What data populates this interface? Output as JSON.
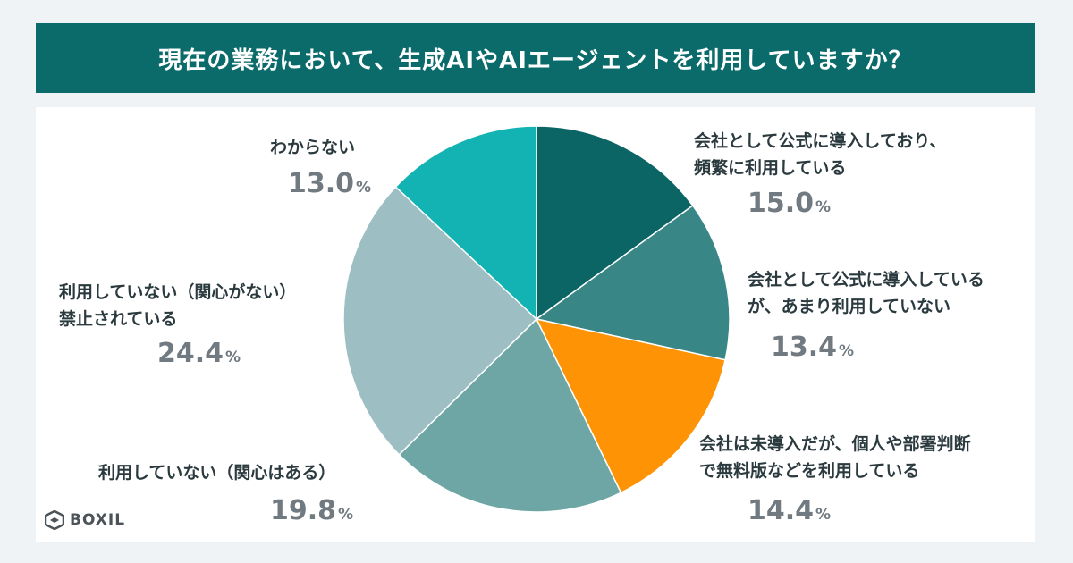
{
  "title": "現在の業務において、生成AIやAIエージェントを利用していますか？",
  "logo_text": "BOXIL",
  "percent_sign": "%",
  "chart_data": {
    "type": "pie",
    "title": "現在の業務において、生成AIやAIエージェントを利用していますか？",
    "slices": [
      {
        "label_lines": [
          "会社として公式に導入しており、",
          "頻繁に利用している"
        ],
        "value": 15.0,
        "display": "15.0",
        "color": "#0b6565"
      },
      {
        "label_lines": [
          "会社として公式に導入している",
          "が、あまり利用していない"
        ],
        "value": 13.4,
        "display": "13.4",
        "color": "#398687"
      },
      {
        "label_lines": [
          "会社は未導入だが、個人や部署判断",
          "で無料版などを利用している"
        ],
        "value": 14.4,
        "display": "14.4",
        "color": "#fe9405"
      },
      {
        "label_lines": [
          "利用していない（関心はある）"
        ],
        "value": 19.8,
        "display": "19.8",
        "color": "#6ea6a6"
      },
      {
        "label_lines": [
          "利用していない（関心がない）",
          "禁止されている"
        ],
        "value": 24.4,
        "display": "24.4",
        "color": "#9dbec2"
      },
      {
        "label_lines": [
          "わからない"
        ],
        "value": 13.0,
        "display": "13.0",
        "color": "#12b3b2"
      }
    ]
  }
}
